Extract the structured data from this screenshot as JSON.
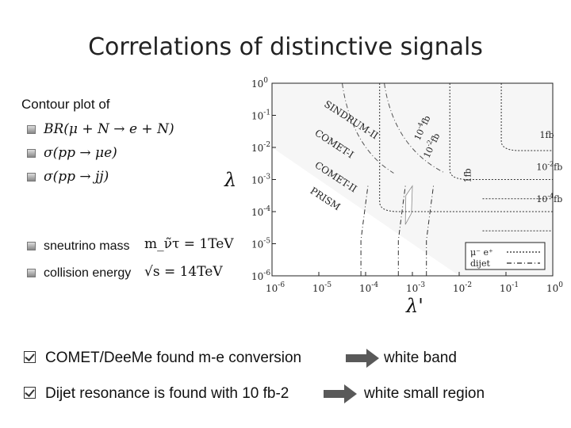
{
  "title": "Correlations of distinctive signals",
  "contour_label": "Contour plot of",
  "observables": [
    "BR(μ + N → e + N)",
    "σ(pp → μe)",
    "σ(pp → jj)"
  ],
  "parameters": [
    {
      "label": "sneutrino mass",
      "value": "m_ν̃τ = 1TeV"
    },
    {
      "label": "collision energy",
      "value": "√s = 14TeV"
    }
  ],
  "conclusions": [
    {
      "text": "COMET/DeeMe found m-e conversion",
      "result": "white band"
    },
    {
      "text": "Dijet resonance is found with 10 fb-2",
      "result": "white small region"
    }
  ],
  "chart_data": {
    "type": "line",
    "log_x": true,
    "log_y": true,
    "xlabel": "λ'",
    "ylabel": "λ",
    "xlim": [
      1e-06,
      1
    ],
    "ylim": [
      1e-06,
      1
    ],
    "x_ticks": [
      "10^-6",
      "10^-5",
      "10^-4",
      "10^-3",
      "10^-2",
      "10^-1",
      "10^0"
    ],
    "y_ticks": [
      "10^0",
      "10^-1",
      "10^-2",
      "10^-3",
      "10^-4",
      "10^-5",
      "10^-6"
    ],
    "regions": [
      {
        "name": "SINDRUM-II",
        "bound_product": 1e-05
      },
      {
        "name": "COMET-I",
        "bound_product": 1e-06
      },
      {
        "name": "COMET-II",
        "bound_product": 3e-07
      },
      {
        "name": "PRISM",
        "bound_product": 1e-08
      }
    ],
    "cross_section_contours": [
      "1fb",
      "10^-2fb",
      "10^-4fb"
    ],
    "curve_labels": [
      "10^-4fb",
      "10^-2fb",
      "1fb",
      "1fb",
      "10^-2fb",
      "10^-4fb"
    ],
    "legend": [
      {
        "name": "μ⁻ e⁺",
        "style": "dotted"
      },
      {
        "name": "dijet",
        "style": "dash-dot"
      }
    ],
    "legend_position": "bottom-right",
    "colors": {
      "excluded": "#c8c8c8",
      "band1": "#d9d9d9",
      "band2": "#ececec",
      "allowed": "#ffffff"
    }
  }
}
